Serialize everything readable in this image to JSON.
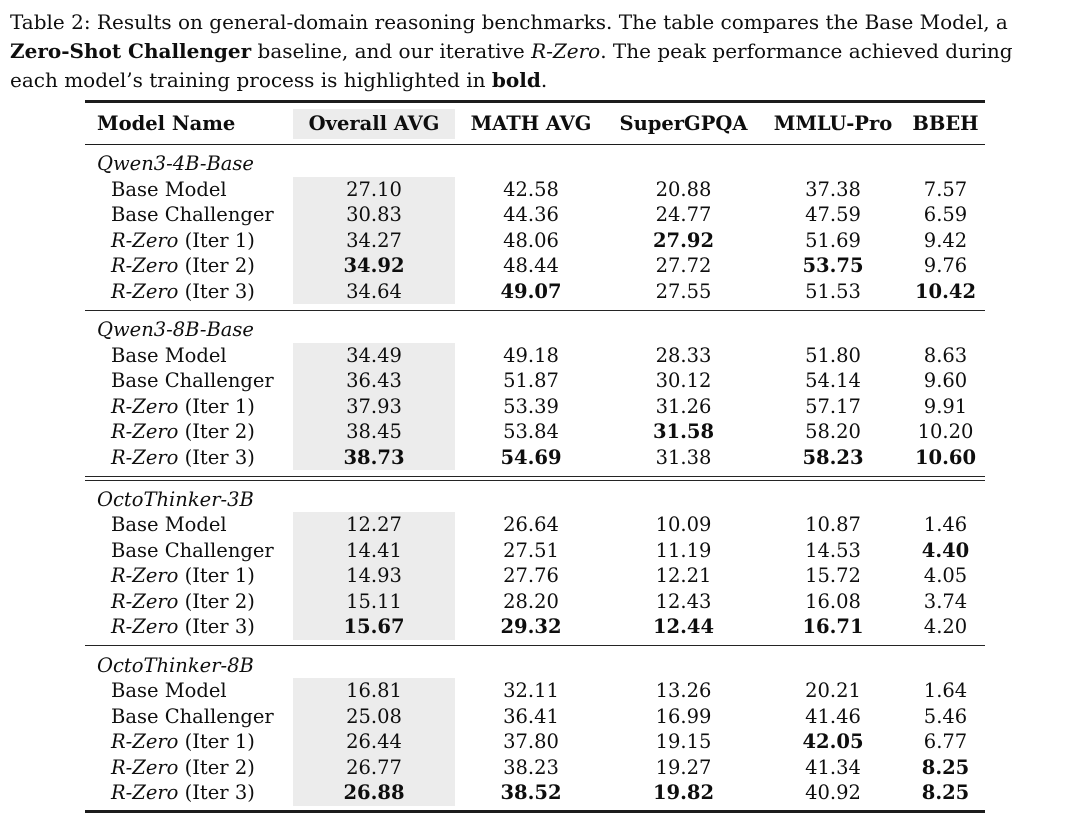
{
  "colors": {
    "column_highlight": "#ececec",
    "rule": "#1c1c1c",
    "text": "#0e0e0e",
    "background": "#ffffff"
  },
  "caption": {
    "lines": [
      [
        {
          "text": "Table 2: Results on general-domain reasoning benchmarks. The table compares the Base Model, a"
        }
      ],
      [
        {
          "text": "Zero-Shot Challenger",
          "bold": true
        },
        {
          "text": " baseline, and our iterative "
        },
        {
          "text": "R-Zero",
          "italic": true
        },
        {
          "text": ". The peak performance achieved during"
        }
      ],
      [
        {
          "text": "each model’s training process is highlighted in "
        },
        {
          "text": "bold",
          "bold": true
        },
        {
          "text": "."
        }
      ]
    ]
  },
  "table": {
    "headers": [
      "Model Name",
      "Overall AVG",
      "MATH AVG",
      "SuperGPQA",
      "MMLU-Pro",
      "BBEH"
    ],
    "highlighted_column": "Overall AVG",
    "groups": [
      {
        "name": "Qwen3-4B-Base",
        "separator_after": "single",
        "rows": [
          {
            "label": [
              {
                "text": "Base Model"
              }
            ],
            "values": [
              "27.10",
              "42.58",
              "20.88",
              "37.38",
              "7.57"
            ],
            "bold": [
              false,
              false,
              false,
              false,
              false
            ]
          },
          {
            "label": [
              {
                "text": "Base Challenger"
              }
            ],
            "values": [
              "30.83",
              "44.36",
              "24.77",
              "47.59",
              "6.59"
            ],
            "bold": [
              false,
              false,
              false,
              false,
              false
            ]
          },
          {
            "label": [
              {
                "text": "R-Zero",
                "italic": true
              },
              {
                "text": " (Iter 1)"
              }
            ],
            "values": [
              "34.27",
              "48.06",
              "27.92",
              "51.69",
              "9.42"
            ],
            "bold": [
              false,
              false,
              true,
              false,
              false
            ]
          },
          {
            "label": [
              {
                "text": "R-Zero",
                "italic": true
              },
              {
                "text": " (Iter 2)"
              }
            ],
            "values": [
              "34.92",
              "48.44",
              "27.72",
              "53.75",
              "9.76"
            ],
            "bold": [
              true,
              false,
              false,
              true,
              false
            ]
          },
          {
            "label": [
              {
                "text": "R-Zero",
                "italic": true
              },
              {
                "text": " (Iter 3)"
              }
            ],
            "values": [
              "34.64",
              "49.07",
              "27.55",
              "51.53",
              "10.42"
            ],
            "bold": [
              false,
              true,
              false,
              false,
              true
            ]
          }
        ]
      },
      {
        "name": "Qwen3-8B-Base",
        "separator_after": "double",
        "rows": [
          {
            "label": [
              {
                "text": "Base Model"
              }
            ],
            "values": [
              "34.49",
              "49.18",
              "28.33",
              "51.80",
              "8.63"
            ],
            "bold": [
              false,
              false,
              false,
              false,
              false
            ]
          },
          {
            "label": [
              {
                "text": "Base Challenger"
              }
            ],
            "values": [
              "36.43",
              "51.87",
              "30.12",
              "54.14",
              "9.60"
            ],
            "bold": [
              false,
              false,
              false,
              false,
              false
            ]
          },
          {
            "label": [
              {
                "text": "R-Zero",
                "italic": true
              },
              {
                "text": " (Iter 1)"
              }
            ],
            "values": [
              "37.93",
              "53.39",
              "31.26",
              "57.17",
              "9.91"
            ],
            "bold": [
              false,
              false,
              false,
              false,
              false
            ]
          },
          {
            "label": [
              {
                "text": "R-Zero",
                "italic": true
              },
              {
                "text": " (Iter 2)"
              }
            ],
            "values": [
              "38.45",
              "53.84",
              "31.58",
              "58.20",
              "10.20"
            ],
            "bold": [
              false,
              false,
              true,
              false,
              false
            ]
          },
          {
            "label": [
              {
                "text": "R-Zero",
                "italic": true
              },
              {
                "text": " (Iter 3)"
              }
            ],
            "values": [
              "38.73",
              "54.69",
              "31.38",
              "58.23",
              "10.60"
            ],
            "bold": [
              true,
              true,
              false,
              true,
              true
            ]
          }
        ]
      },
      {
        "name": "OctoThinker-3B",
        "separator_after": "single",
        "rows": [
          {
            "label": [
              {
                "text": "Base Model"
              }
            ],
            "values": [
              "12.27",
              "26.64",
              "10.09",
              "10.87",
              "1.46"
            ],
            "bold": [
              false,
              false,
              false,
              false,
              false
            ]
          },
          {
            "label": [
              {
                "text": "Base Challenger"
              }
            ],
            "values": [
              "14.41",
              "27.51",
              "11.19",
              "14.53",
              "4.40"
            ],
            "bold": [
              false,
              false,
              false,
              false,
              true
            ]
          },
          {
            "label": [
              {
                "text": "R-Zero",
                "italic": true
              },
              {
                "text": " (Iter 1)"
              }
            ],
            "values": [
              "14.93",
              "27.76",
              "12.21",
              "15.72",
              "4.05"
            ],
            "bold": [
              false,
              false,
              false,
              false,
              false
            ]
          },
          {
            "label": [
              {
                "text": "R-Zero",
                "italic": true
              },
              {
                "text": " (Iter 2)"
              }
            ],
            "values": [
              "15.11",
              "28.20",
              "12.43",
              "16.08",
              "3.74"
            ],
            "bold": [
              false,
              false,
              false,
              false,
              false
            ]
          },
          {
            "label": [
              {
                "text": "R-Zero",
                "italic": true
              },
              {
                "text": " (Iter 3)"
              }
            ],
            "values": [
              "15.67",
              "29.32",
              "12.44",
              "16.71",
              "4.20"
            ],
            "bold": [
              true,
              true,
              true,
              true,
              false
            ]
          }
        ]
      },
      {
        "name": "OctoThinker-8B",
        "separator_after": "none",
        "rows": [
          {
            "label": [
              {
                "text": "Base Model"
              }
            ],
            "values": [
              "16.81",
              "32.11",
              "13.26",
              "20.21",
              "1.64"
            ],
            "bold": [
              false,
              false,
              false,
              false,
              false
            ]
          },
          {
            "label": [
              {
                "text": "Base Challenger"
              }
            ],
            "values": [
              "25.08",
              "36.41",
              "16.99",
              "41.46",
              "5.46"
            ],
            "bold": [
              false,
              false,
              false,
              false,
              false
            ]
          },
          {
            "label": [
              {
                "text": "R-Zero",
                "italic": true
              },
              {
                "text": " (Iter 1)"
              }
            ],
            "values": [
              "26.44",
              "37.80",
              "19.15",
              "42.05",
              "6.77"
            ],
            "bold": [
              false,
              false,
              false,
              true,
              false
            ]
          },
          {
            "label": [
              {
                "text": "R-Zero",
                "italic": true
              },
              {
                "text": " (Iter 2)"
              }
            ],
            "values": [
              "26.77",
              "38.23",
              "19.27",
              "41.34",
              "8.25"
            ],
            "bold": [
              false,
              false,
              false,
              false,
              true
            ]
          },
          {
            "label": [
              {
                "text": "R-Zero",
                "italic": true
              },
              {
                "text": " (Iter 3)"
              }
            ],
            "values": [
              "26.88",
              "38.52",
              "19.82",
              "40.92",
              "8.25"
            ],
            "bold": [
              true,
              true,
              true,
              false,
              true
            ]
          }
        ]
      }
    ]
  }
}
